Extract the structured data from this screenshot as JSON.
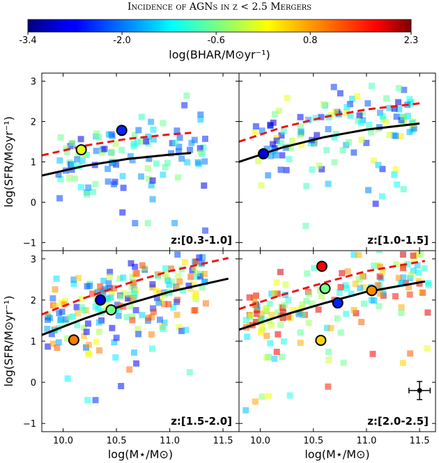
{
  "figure": {
    "title": "Incidence of AGNs in z < 2.5 Mergers"
  },
  "colorbar": {
    "label": "log(BHAR/M⊙yr⁻¹)",
    "min": -3.4,
    "max": 2.3,
    "tick_labels": [
      "-3.4",
      "-2.0",
      "-0.6",
      "0.8",
      "2.3"
    ],
    "tick_values": [
      -3.4,
      -2.0,
      -0.6,
      0.8,
      2.3
    ],
    "colormap": "jet"
  },
  "chart_data": {
    "type": "scatter",
    "xlabel": "log(M⋆/M⊙)",
    "ylabel": "log(SFR/M⊙yr⁻¹)",
    "xlim": [
      9.8,
      11.65
    ],
    "ylim": [
      -1.2,
      3.2
    ],
    "x_ticks": [
      10.0,
      10.5,
      11.0,
      11.5
    ],
    "y_ticks": [
      -1,
      0,
      1,
      2,
      3
    ],
    "x_tick_labels": [
      "10.0",
      "10.5",
      "11.0",
      "11.5"
    ],
    "y_tick_labels": [
      "−1",
      "0",
      "1",
      "2",
      "3"
    ],
    "panels": [
      {
        "label": "z:[0.3-1.0]",
        "main_sequence_black": [
          [
            9.8,
            0.66
          ],
          [
            10.2,
            0.9
          ],
          [
            10.6,
            1.07
          ],
          [
            11.0,
            1.18
          ],
          [
            11.2,
            1.22
          ]
        ],
        "main_sequence_red_dashed": [
          [
            9.8,
            1.16
          ],
          [
            10.2,
            1.4
          ],
          [
            10.6,
            1.57
          ],
          [
            11.0,
            1.68
          ],
          [
            11.2,
            1.72
          ]
        ],
        "mergers": [
          {
            "x": 10.17,
            "y": 1.3,
            "c": 0.0
          },
          {
            "x": 10.55,
            "y": 1.78,
            "c": -2.5
          }
        ],
        "non_merger_color_range": [
          -3.0,
          -0.3
        ],
        "non_merger_count": 115,
        "non_merger_x_range": [
          9.95,
          11.35
        ]
      },
      {
        "label": "z:[1.0-1.5]",
        "main_sequence_black": [
          [
            9.8,
            1.0
          ],
          [
            10.2,
            1.35
          ],
          [
            10.6,
            1.61
          ],
          [
            11.0,
            1.8
          ],
          [
            11.5,
            1.95
          ]
        ],
        "main_sequence_red_dashed": [
          [
            9.8,
            1.5
          ],
          [
            10.2,
            1.85
          ],
          [
            10.6,
            2.11
          ],
          [
            11.0,
            2.3
          ],
          [
            11.5,
            2.45
          ]
        ],
        "mergers": [
          {
            "x": 10.03,
            "y": 1.2,
            "c": -2.9
          }
        ],
        "non_merger_color_range": [
          -3.0,
          0.3
        ],
        "non_merger_count": 135,
        "non_merger_x_range": [
          9.95,
          11.45
        ]
      },
      {
        "label": "z:[1.5-2.0]",
        "main_sequence_black": [
          [
            9.8,
            1.15
          ],
          [
            10.2,
            1.55
          ],
          [
            10.6,
            1.9
          ],
          [
            11.0,
            2.2
          ],
          [
            11.55,
            2.52
          ]
        ],
        "main_sequence_red_dashed": [
          [
            9.8,
            1.65
          ],
          [
            10.2,
            2.05
          ],
          [
            10.6,
            2.4
          ],
          [
            11.0,
            2.7
          ],
          [
            11.55,
            3.02
          ]
        ],
        "mergers": [
          {
            "x": 10.1,
            "y": 1.03,
            "c": 0.9
          },
          {
            "x": 10.35,
            "y": 2.0,
            "c": -2.9
          },
          {
            "x": 10.45,
            "y": 1.76,
            "c": -0.6
          }
        ],
        "non_merger_color_range": [
          -2.8,
          1.4
        ],
        "non_merger_count": 210,
        "non_merger_x_range": [
          9.85,
          11.35
        ]
      },
      {
        "label": "z:[2.0-2.5]",
        "main_sequence_black": [
          [
            9.8,
            1.28
          ],
          [
            10.2,
            1.62
          ],
          [
            10.6,
            1.92
          ],
          [
            11.0,
            2.2
          ],
          [
            11.55,
            2.45
          ]
        ],
        "main_sequence_red_dashed": [
          [
            9.8,
            1.78
          ],
          [
            10.2,
            2.12
          ],
          [
            10.6,
            2.42
          ],
          [
            11.0,
            2.7
          ],
          [
            11.55,
            2.95
          ]
        ],
        "mergers": [
          {
            "x": 10.58,
            "y": 2.82,
            "c": 1.6
          },
          {
            "x": 10.61,
            "y": 2.28,
            "c": -0.6
          },
          {
            "x": 10.73,
            "y": 1.93,
            "c": -2.5
          },
          {
            "x": 11.05,
            "y": 2.23,
            "c": 0.8
          },
          {
            "x": 10.57,
            "y": 1.02,
            "c": 0.4
          }
        ],
        "non_merger_color_range": [
          -1.8,
          2.0
        ],
        "non_merger_count": 170,
        "non_merger_x_range": [
          9.85,
          11.6
        ],
        "error_bar": {
          "x": 11.5,
          "y": -0.2,
          "xerr": 0.1,
          "yerr": 0.22
        }
      }
    ]
  }
}
